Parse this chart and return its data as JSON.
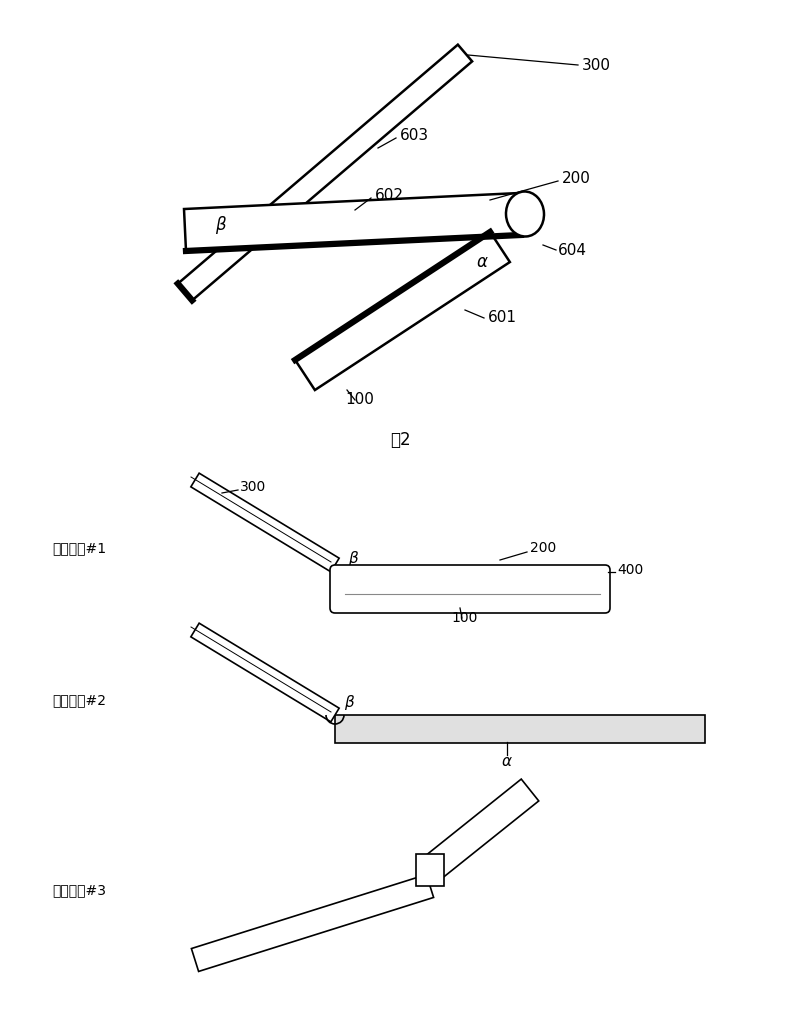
{
  "figsize": [
    8.0,
    10.14
  ],
  "dpi": 100,
  "bg": "#ffffff",
  "fig2_label": "图2",
  "states": [
    "支架状态#1",
    "支架状态#2",
    "支架状态#3"
  ]
}
